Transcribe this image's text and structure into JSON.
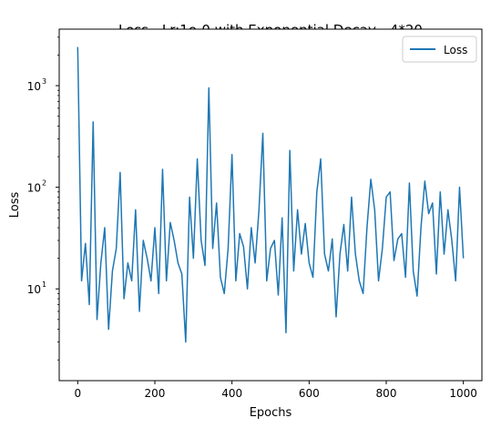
{
  "chart_data": {
    "type": "line",
    "title": "Loss - Lr:1e-0 with Exponential Decay - 4*20",
    "xlabel": "Epochs",
    "ylabel": "Loss",
    "xlim": [
      -48,
      1048
    ],
    "ylim": [
      1.25,
      3600
    ],
    "yscale": "log",
    "grid": false,
    "x_ticks": [
      0,
      200,
      400,
      600,
      800,
      1000
    ],
    "x_tick_labels": [
      "0",
      "200",
      "400",
      "600",
      "800",
      "1000"
    ],
    "y_ticks": [
      10,
      100,
      1000
    ],
    "y_tick_labels": [
      "10",
      "10",
      "10"
    ],
    "y_tick_exponents": [
      "1",
      "2",
      "3"
    ],
    "legend": {
      "position": "top-right",
      "entries": [
        "Loss"
      ]
    },
    "series": [
      {
        "name": "Loss",
        "color": "#1f77b4",
        "x_start": 0,
        "x_step": 10,
        "values": [
          2400,
          12,
          28,
          7,
          440,
          5,
          18,
          40,
          4,
          15,
          25,
          140,
          8,
          18,
          12,
          60,
          6,
          30,
          20,
          12,
          40,
          9,
          150,
          12,
          45,
          30,
          18,
          14,
          3.0,
          80,
          20,
          190,
          30,
          17,
          950,
          25,
          70,
          13,
          9,
          25,
          210,
          12,
          35,
          26,
          10,
          40,
          18,
          60,
          340,
          12,
          25,
          30,
          8.7,
          50,
          3.7,
          230,
          15,
          60,
          22,
          44,
          18,
          13,
          90,
          190,
          22,
          15,
          31,
          5.3,
          22,
          43,
          15,
          80,
          22,
          12,
          9,
          40,
          120,
          60,
          12,
          25,
          80,
          90,
          19,
          31,
          35,
          13,
          110,
          15,
          8.5,
          40,
          115,
          55,
          70,
          14,
          90,
          22,
          60,
          30,
          12,
          100,
          20
        ]
      }
    ]
  }
}
